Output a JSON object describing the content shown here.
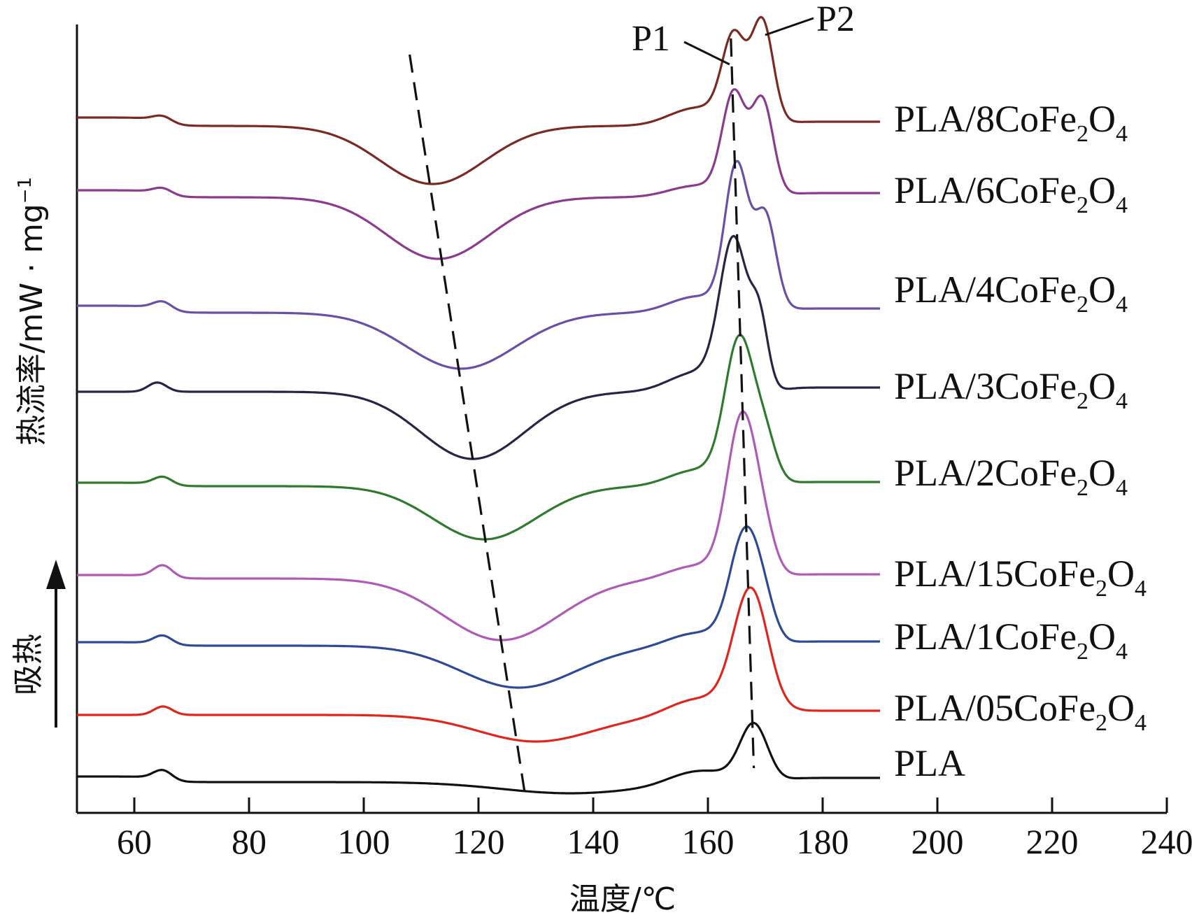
{
  "chart_data": {
    "type": "line",
    "title": "",
    "xlabel": "温度/℃",
    "ylabel": "热流率/mW · mg",
    "ylabel_sup": "−1",
    "endotherm_label": "吸热",
    "xlim": [
      50,
      240
    ],
    "xticks": [
      60,
      80,
      100,
      120,
      140,
      160,
      180,
      200,
      220,
      240
    ],
    "grid": false,
    "legend": "right-of-curves",
    "peak_labels": [
      {
        "text": "P1",
        "x": 164.5
      },
      {
        "text": "P2",
        "x": 169.5
      }
    ],
    "series": [
      {
        "name": "PLA/8CoFe2O4",
        "label_main": "PLA/8CoFe",
        "label_sub1": "2",
        "label_mid": "O",
        "label_sub2": "4",
        "color": "#7a2a22",
        "tg": 65,
        "cold_cryst_peak": 112,
        "melt_peaks": [
          164.5,
          169.5
        ]
      },
      {
        "name": "PLA/6CoFe2O4",
        "label_main": "PLA/6CoFe",
        "label_sub1": "2",
        "label_mid": "O",
        "label_sub2": "4",
        "color": "#8b3a8e",
        "tg": 65,
        "cold_cryst_peak": 113,
        "melt_peaks": [
          164.5,
          169.5
        ]
      },
      {
        "name": "PLA/4CoFe2O4",
        "label_main": "PLA/4CoFe",
        "label_sub1": "2",
        "label_mid": "O",
        "label_sub2": "4",
        "color": "#6a4fa8",
        "tg": 65,
        "cold_cryst_peak": 117,
        "melt_peaks": [
          165,
          170
        ]
      },
      {
        "name": "PLA/3CoFe2O4",
        "label_main": "PLA/3CoFe",
        "label_sub1": "2",
        "label_mid": "O",
        "label_sub2": "4",
        "color": "#2c2244",
        "tg": 64,
        "cold_cryst_peak": 119,
        "melt_peaks": [
          164.5,
          169
        ]
      },
      {
        "name": "PLA/2CoFe2O4",
        "label_main": "PLA/2CoFe",
        "label_sub1": "2",
        "label_mid": "O",
        "label_sub2": "4",
        "color": "#2f7a2c",
        "tg": 65,
        "cold_cryst_peak": 121,
        "melt_peaks": [
          165.5,
          170
        ]
      },
      {
        "name": "PLA/15CoFe2O4",
        "label_main": "PLA/15CoFe",
        "label_sub1": "2",
        "label_mid": "O",
        "label_sub2": "4",
        "color": "#b05ab8",
        "tg": 65,
        "cold_cryst_peak": 124,
        "melt_peaks": [
          166,
          170
        ]
      },
      {
        "name": "PLA/1CoFe2O4",
        "label_main": "PLA/1CoFe",
        "label_sub1": "2",
        "label_mid": "O",
        "label_sub2": "4",
        "color": "#2d4a9a",
        "tg": 65,
        "cold_cryst_peak": 127,
        "melt_peaks": [
          166.5,
          170
        ]
      },
      {
        "name": "PLA/05CoFe2O4",
        "label_main": "PLA/05CoFe",
        "label_sub1": "2",
        "label_mid": "O",
        "label_sub2": "4",
        "color": "#e0261c",
        "tg": 65,
        "cold_cryst_peak": 130,
        "melt_peaks": [
          167.5
        ]
      },
      {
        "name": "PLA",
        "label_main": "PLA",
        "label_sub1": "",
        "label_mid": "",
        "label_sub2": "",
        "color": "#111111",
        "tg": 65,
        "cold_cryst_peak": 136,
        "melt_peaks": [
          168
        ]
      }
    ]
  }
}
